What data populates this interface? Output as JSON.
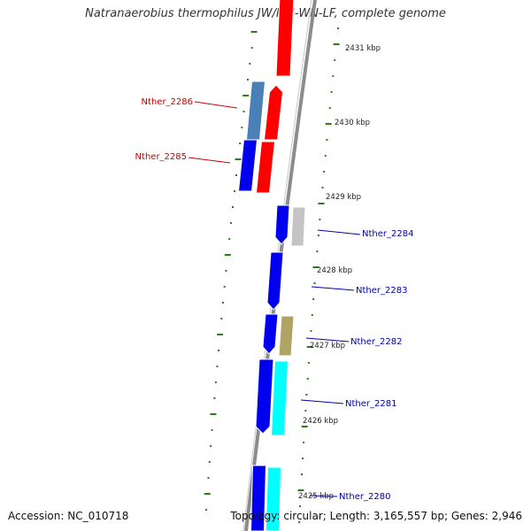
{
  "title": "Natranaerobius thermophilus JW/NM-WN-LF, complete genome",
  "footer": {
    "accession": "Accession: NC_010718",
    "topology": "Topology: circular; Length: 3,165,557 bp; Genes: 2,946"
  },
  "colors": {
    "backbone": "#8c8c8c",
    "ticks": "#2e7d1a",
    "highlight_label": "#cc0000",
    "label": "#0000aa"
  },
  "kbp_labels": [
    "2431 kbp",
    "2430 kbp",
    "2429 kbp",
    "2428 kbp",
    "2427 kbp",
    "2426 kbp",
    "2425 kbp"
  ],
  "gene_labels": [
    {
      "text": "Nther_2286",
      "color": "#cc0000"
    },
    {
      "text": "Nther_2285",
      "color": "#cc0000"
    },
    {
      "text": "Nther_2284",
      "color": "#0000aa"
    },
    {
      "text": "Nther_2283",
      "color": "#0000aa"
    },
    {
      "text": "Nther_2282",
      "color": "#0000aa"
    },
    {
      "text": "Nther_2281",
      "color": "#0000aa"
    },
    {
      "text": "Nther_2280",
      "color": "#0000aa"
    }
  ]
}
